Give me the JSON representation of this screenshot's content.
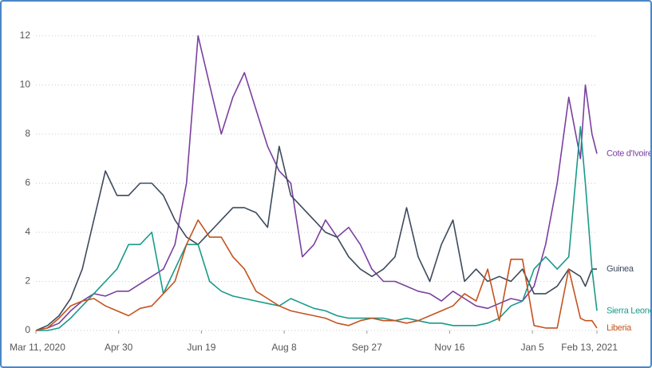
{
  "chart_data": {
    "type": "line",
    "x": [
      "2020-03-11",
      "2020-03-18",
      "2020-03-25",
      "2020-04-01",
      "2020-04-08",
      "2020-04-15",
      "2020-04-22",
      "2020-04-29",
      "2020-05-06",
      "2020-05-13",
      "2020-05-20",
      "2020-05-27",
      "2020-06-03",
      "2020-06-10",
      "2020-06-17",
      "2020-06-24",
      "2020-07-01",
      "2020-07-08",
      "2020-07-15",
      "2020-07-22",
      "2020-07-29",
      "2020-08-05",
      "2020-08-12",
      "2020-08-19",
      "2020-08-26",
      "2020-09-02",
      "2020-09-09",
      "2020-09-16",
      "2020-09-23",
      "2020-09-30",
      "2020-10-07",
      "2020-10-14",
      "2020-10-21",
      "2020-10-28",
      "2020-11-04",
      "2020-11-11",
      "2020-11-18",
      "2020-11-25",
      "2020-12-02",
      "2020-12-09",
      "2020-12-16",
      "2020-12-23",
      "2020-12-30",
      "2021-01-06",
      "2021-01-13",
      "2021-01-20",
      "2021-01-27",
      "2021-02-03",
      "2021-02-06",
      "2021-02-10",
      "2021-02-13"
    ],
    "series": [
      {
        "name": "Cote d'Ivoire",
        "color": "#7b3fa0",
        "values": [
          0,
          0.1,
          0.3,
          0.8,
          1.2,
          1.5,
          1.4,
          1.6,
          1.6,
          1.9,
          2.2,
          2.5,
          3.5,
          6,
          12,
          10,
          8,
          9.5,
          10.5,
          9,
          7.5,
          6.5,
          6,
          3,
          3.5,
          4.5,
          3.8,
          4.2,
          3.5,
          2.5,
          2,
          2,
          1.8,
          1.6,
          1.5,
          1.2,
          1.6,
          1.3,
          1,
          0.9,
          1.1,
          1.3,
          1.2,
          1.8,
          3.5,
          6,
          9.5,
          7,
          10,
          8,
          7.2
        ]
      },
      {
        "name": "Guinea",
        "color": "#3d4a5c",
        "values": [
          0,
          0.2,
          0.6,
          1.3,
          2.5,
          4.5,
          6.5,
          5.5,
          5.5,
          6,
          6,
          5.5,
          4.5,
          3.8,
          3.5,
          4,
          4.5,
          5,
          5,
          4.8,
          4.2,
          7.5,
          5.5,
          5,
          4.5,
          4,
          3.8,
          3,
          2.5,
          2.2,
          2.5,
          3,
          5,
          3,
          2,
          3.5,
          4.5,
          2,
          2.5,
          2,
          2.2,
          2,
          2.5,
          1.5,
          1.5,
          1.8,
          2.5,
          2.2,
          1.8,
          2.5,
          2.5
        ]
      },
      {
        "name": "Sierra Leone",
        "color": "#1a9a8a",
        "values": [
          0,
          0,
          0.1,
          0.5,
          1,
          1.5,
          2,
          2.5,
          3.5,
          3.5,
          4,
          1.5,
          2.5,
          3.5,
          3.5,
          2,
          1.6,
          1.4,
          1.3,
          1.2,
          1.1,
          1,
          1.3,
          1.1,
          0.9,
          0.8,
          0.6,
          0.5,
          0.5,
          0.5,
          0.5,
          0.4,
          0.5,
          0.4,
          0.3,
          0.3,
          0.2,
          0.2,
          0.2,
          0.3,
          0.5,
          1,
          1.2,
          2.5,
          3,
          2.5,
          3,
          8.3,
          6,
          2.5,
          0.8
        ]
      },
      {
        "name": "Liberia",
        "color": "#c4531f",
        "values": [
          0,
          0.1,
          0.5,
          1,
          1.2,
          1.3,
          1,
          0.8,
          0.6,
          0.9,
          1,
          1.5,
          2,
          3.5,
          4.5,
          3.8,
          3.8,
          3,
          2.5,
          1.6,
          1.3,
          1,
          0.8,
          0.7,
          0.6,
          0.5,
          0.3,
          0.2,
          0.4,
          0.5,
          0.4,
          0.4,
          0.3,
          0.4,
          0.6,
          0.8,
          1,
          1.5,
          1.2,
          2.5,
          0.4,
          2.9,
          2.9,
          0.2,
          0.1,
          0.1,
          2.5,
          0.5,
          0.4,
          0.4,
          0.1
        ]
      }
    ],
    "xlim": [
      "2020-03-11",
      "2021-02-13"
    ],
    "xticks": [
      {
        "value": "2020-03-11",
        "label": "Mar 11, 2020"
      },
      {
        "value": "2020-04-30",
        "label": "Apr 30"
      },
      {
        "value": "2020-06-19",
        "label": "Jun 19"
      },
      {
        "value": "2020-08-08",
        "label": "Aug 8"
      },
      {
        "value": "2020-09-27",
        "label": "Sep 27"
      },
      {
        "value": "2020-11-16",
        "label": "Nov 16"
      },
      {
        "value": "2021-01-05",
        "label": "Jan 5"
      },
      {
        "value": "2021-02-13",
        "label": "Feb 13, 2021"
      }
    ],
    "ylim": [
      0,
      13.2
    ],
    "yticks": [
      0,
      2,
      4,
      6,
      8,
      10,
      12
    ],
    "grid": true
  }
}
